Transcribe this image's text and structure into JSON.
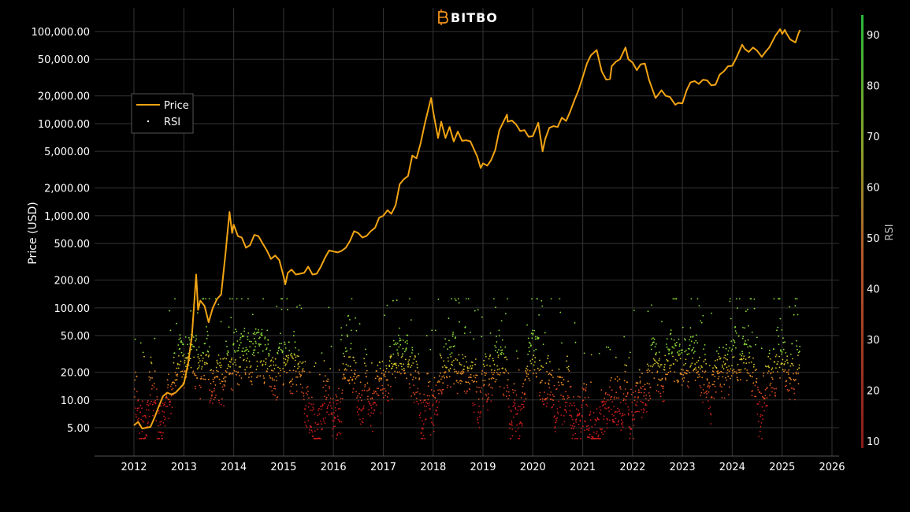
{
  "brand": {
    "name": "BITBO",
    "icon": "bitcoin-b-icon",
    "accent": "#f7931a"
  },
  "colors": {
    "background": "#000000",
    "grid": "#333333",
    "price": "#f2a413",
    "rsi_low": "#cc1d1d",
    "rsi_mid": "#e98a24",
    "rsi_high": "#8fe03a"
  },
  "chart_data": {
    "type": "line",
    "y_scale": "log",
    "grid": true,
    "legend_position": "left",
    "xlabel": "",
    "ylabel": "Price (USD)",
    "y2label": "RSI",
    "xlim": [
      "2012-01-01",
      "2026-01-01"
    ],
    "x_ticks": [
      "2012",
      "2013",
      "2014",
      "2015",
      "2016",
      "2017",
      "2018",
      "2019",
      "2020",
      "2021",
      "2022",
      "2023",
      "2024",
      "2025",
      "2026"
    ],
    "y_ticks": [
      100000,
      50000,
      20000,
      10000,
      5000,
      2000,
      1000,
      500,
      200,
      100,
      50,
      20,
      10,
      5
    ],
    "y_tick_labels": [
      "100,000.00",
      "50,000.00",
      "20,000.00",
      "10,000.00",
      "5,000.00",
      "2,000.00",
      "1,000.00",
      "500.00",
      "200.00",
      "100.00",
      "50.00",
      "20.00",
      "10.00",
      "5.00"
    ],
    "y2_ticks": [
      90,
      80,
      70,
      60,
      50,
      40,
      30,
      20,
      10
    ],
    "series": [
      {
        "name": "Price",
        "kind": "line",
        "color": "#f2a413",
        "points": [
          [
            "2012-01-01",
            5.3
          ],
          [
            "2012-02-01",
            5.8
          ],
          [
            "2012-03-01",
            4.9
          ],
          [
            "2012-04-01",
            5.0
          ],
          [
            "2012-05-01",
            5.1
          ],
          [
            "2012-06-01",
            6.5
          ],
          [
            "2012-07-01",
            8.5
          ],
          [
            "2012-08-01",
            11
          ],
          [
            "2012-09-01",
            12
          ],
          [
            "2012-10-01",
            11.5
          ],
          [
            "2012-11-01",
            12
          ],
          [
            "2012-12-01",
            13.4
          ],
          [
            "2013-01-01",
            15
          ],
          [
            "2013-02-01",
            25
          ],
          [
            "2013-03-01",
            50
          ],
          [
            "2013-04-01",
            230
          ],
          [
            "2013-04-15",
            95
          ],
          [
            "2013-05-01",
            120
          ],
          [
            "2013-06-01",
            105
          ],
          [
            "2013-07-01",
            70
          ],
          [
            "2013-08-01",
            100
          ],
          [
            "2013-09-01",
            125
          ],
          [
            "2013-10-01",
            140
          ],
          [
            "2013-11-01",
            380
          ],
          [
            "2013-12-01",
            1100
          ],
          [
            "2013-12-20",
            650
          ],
          [
            "2014-01-01",
            800
          ],
          [
            "2014-02-01",
            600
          ],
          [
            "2014-03-01",
            580
          ],
          [
            "2014-04-01",
            450
          ],
          [
            "2014-05-01",
            480
          ],
          [
            "2014-06-01",
            620
          ],
          [
            "2014-07-01",
            600
          ],
          [
            "2014-08-01",
            500
          ],
          [
            "2014-09-01",
            420
          ],
          [
            "2014-10-01",
            340
          ],
          [
            "2014-11-01",
            370
          ],
          [
            "2014-12-01",
            330
          ],
          [
            "2015-01-01",
            220
          ],
          [
            "2015-01-14",
            180
          ],
          [
            "2015-02-01",
            240
          ],
          [
            "2015-03-01",
            260
          ],
          [
            "2015-04-01",
            230
          ],
          [
            "2015-05-01",
            235
          ],
          [
            "2015-06-01",
            240
          ],
          [
            "2015-07-01",
            280
          ],
          [
            "2015-08-01",
            230
          ],
          [
            "2015-09-01",
            235
          ],
          [
            "2015-10-01",
            280
          ],
          [
            "2015-11-01",
            350
          ],
          [
            "2015-12-01",
            420
          ],
          [
            "2016-01-01",
            410
          ],
          [
            "2016-02-01",
            400
          ],
          [
            "2016-03-01",
            415
          ],
          [
            "2016-04-01",
            450
          ],
          [
            "2016-05-01",
            530
          ],
          [
            "2016-06-01",
            680
          ],
          [
            "2016-07-01",
            650
          ],
          [
            "2016-08-01",
            580
          ],
          [
            "2016-09-01",
            605
          ],
          [
            "2016-10-01",
            680
          ],
          [
            "2016-11-01",
            740
          ],
          [
            "2016-12-01",
            950
          ],
          [
            "2017-01-01",
            1000
          ],
          [
            "2017-02-01",
            1150
          ],
          [
            "2017-03-01",
            1050
          ],
          [
            "2017-04-01",
            1300
          ],
          [
            "2017-05-01",
            2200
          ],
          [
            "2017-06-01",
            2500
          ],
          [
            "2017-07-01",
            2700
          ],
          [
            "2017-08-01",
            4500
          ],
          [
            "2017-09-01",
            4200
          ],
          [
            "2017-10-01",
            6100
          ],
          [
            "2017-11-01",
            10000
          ],
          [
            "2017-12-17",
            19000
          ],
          [
            "2018-01-01",
            13500
          ],
          [
            "2018-02-06",
            7000
          ],
          [
            "2018-03-01",
            10500
          ],
          [
            "2018-04-01",
            7000
          ],
          [
            "2018-05-01",
            9200
          ],
          [
            "2018-06-01",
            6400
          ],
          [
            "2018-07-01",
            8200
          ],
          [
            "2018-08-01",
            6500
          ],
          [
            "2018-09-01",
            6600
          ],
          [
            "2018-10-01",
            6400
          ],
          [
            "2018-11-20",
            4400
          ],
          [
            "2018-12-15",
            3300
          ],
          [
            "2019-01-01",
            3700
          ],
          [
            "2019-02-01",
            3500
          ],
          [
            "2019-03-01",
            4000
          ],
          [
            "2019-04-01",
            5200
          ],
          [
            "2019-05-01",
            8500
          ],
          [
            "2019-06-26",
            12500
          ],
          [
            "2019-07-01",
            10500
          ],
          [
            "2019-08-01",
            10800
          ],
          [
            "2019-09-01",
            9800
          ],
          [
            "2019-10-01",
            8300
          ],
          [
            "2019-11-01",
            8500
          ],
          [
            "2019-12-01",
            7200
          ],
          [
            "2020-01-01",
            7300
          ],
          [
            "2020-02-10",
            10200
          ],
          [
            "2020-03-13",
            5000
          ],
          [
            "2020-04-01",
            6800
          ],
          [
            "2020-05-01",
            9000
          ],
          [
            "2020-06-01",
            9400
          ],
          [
            "2020-07-01",
            9200
          ],
          [
            "2020-08-01",
            11600
          ],
          [
            "2020-09-01",
            10700
          ],
          [
            "2020-10-01",
            13500
          ],
          [
            "2020-11-01",
            18000
          ],
          [
            "2020-12-01",
            23000
          ],
          [
            "2021-01-01",
            32000
          ],
          [
            "2021-02-01",
            45000
          ],
          [
            "2021-03-01",
            55000
          ],
          [
            "2021-04-13",
            63000
          ],
          [
            "2021-05-20",
            37000
          ],
          [
            "2021-06-22",
            30000
          ],
          [
            "2021-07-20",
            30500
          ],
          [
            "2021-08-01",
            42000
          ],
          [
            "2021-09-01",
            47000
          ],
          [
            "2021-10-01",
            50000
          ],
          [
            "2021-11-10",
            67000
          ],
          [
            "2021-12-01",
            50000
          ],
          [
            "2022-01-01",
            46000
          ],
          [
            "2022-02-01",
            38000
          ],
          [
            "2022-03-01",
            44000
          ],
          [
            "2022-04-01",
            45000
          ],
          [
            "2022-05-01",
            30000
          ],
          [
            "2022-06-18",
            19000
          ],
          [
            "2022-07-01",
            20000
          ],
          [
            "2022-08-01",
            23000
          ],
          [
            "2022-09-01",
            20000
          ],
          [
            "2022-10-01",
            19500
          ],
          [
            "2022-11-10",
            16000
          ],
          [
            "2022-12-01",
            16800
          ],
          [
            "2023-01-01",
            16600
          ],
          [
            "2023-02-01",
            23000
          ],
          [
            "2023-03-01",
            28000
          ],
          [
            "2023-04-01",
            29000
          ],
          [
            "2023-05-01",
            27000
          ],
          [
            "2023-06-01",
            30000
          ],
          [
            "2023-07-01",
            29500
          ],
          [
            "2023-08-01",
            26000
          ],
          [
            "2023-09-01",
            26500
          ],
          [
            "2023-10-01",
            34000
          ],
          [
            "2023-11-01",
            37000
          ],
          [
            "2023-12-01",
            42000
          ],
          [
            "2024-01-01",
            42500
          ],
          [
            "2024-02-01",
            52000
          ],
          [
            "2024-03-14",
            72000
          ],
          [
            "2024-04-01",
            65000
          ],
          [
            "2024-05-01",
            60000
          ],
          [
            "2024-06-01",
            67000
          ],
          [
            "2024-07-01",
            62000
          ],
          [
            "2024-08-05",
            53000
          ],
          [
            "2024-09-01",
            60000
          ],
          [
            "2024-10-01",
            68000
          ],
          [
            "2024-11-12",
            90000
          ],
          [
            "2024-12-17",
            106000
          ],
          [
            "2025-01-01",
            94000
          ],
          [
            "2025-01-20",
            104000
          ],
          [
            "2025-02-01",
            96000
          ],
          [
            "2025-03-01",
            82000
          ],
          [
            "2025-04-08",
            76000
          ],
          [
            "2025-05-01",
            96000
          ],
          [
            "2025-05-12",
            104000
          ]
        ]
      },
      {
        "name": "RSI",
        "kind": "scatter",
        "axis": "y2",
        "color_scale": [
          "#cc1d1d",
          "#e98a24",
          "#8fe03a"
        ],
        "range": [
          10,
          90
        ],
        "description": "Daily RSI values from 2012 to mid-2025, mostly between 12 and 35, colored red (low) through orange to green (high)."
      }
    ]
  }
}
